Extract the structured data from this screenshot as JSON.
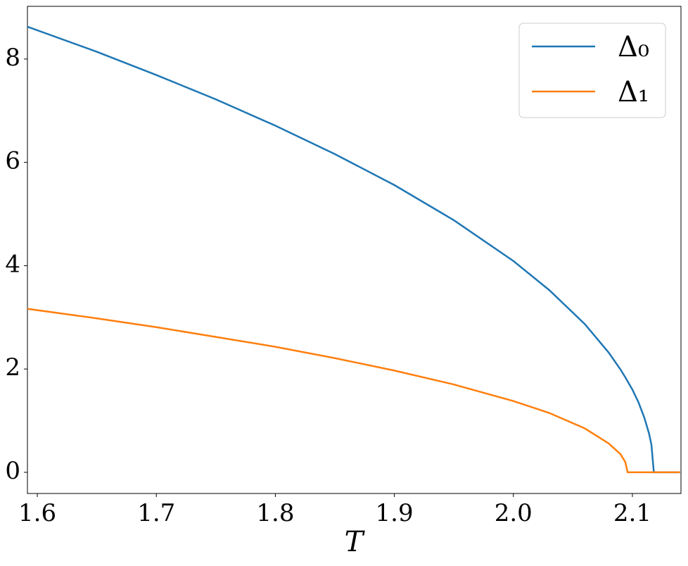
{
  "chart_data": {
    "type": "line",
    "x_label": "T",
    "x": [
      1.59,
      1.65,
      1.7,
      1.75,
      1.8,
      1.85,
      1.9,
      1.95,
      2.0,
      2.03,
      2.06,
      2.08,
      2.09,
      2.094,
      2.096,
      2.1,
      2.105,
      2.11,
      2.114,
      2.116,
      2.118,
      2.14
    ],
    "series": [
      {
        "name": "Δ₀",
        "color": "#1f77b4",
        "values": [
          8.64,
          8.14,
          7.69,
          7.22,
          6.71,
          6.16,
          5.56,
          4.88,
          4.09,
          3.53,
          2.87,
          2.32,
          1.99,
          1.84,
          1.76,
          1.6,
          1.36,
          1.06,
          0.75,
          0.53,
          0,
          0
        ]
      },
      {
        "name": "Δ₁",
        "color": "#ff7f0e",
        "values": [
          3.17,
          2.98,
          2.81,
          2.62,
          2.43,
          2.21,
          1.97,
          1.7,
          1.38,
          1.15,
          0.85,
          0.56,
          0.35,
          0.2,
          0,
          0,
          0,
          0,
          0,
          0,
          0,
          0
        ]
      }
    ],
    "xlim": [
      1.5917,
      2.1408
    ],
    "ylim": [
      -0.41,
      9.02
    ],
    "xticks": [
      1.6,
      1.7,
      1.8,
      1.9,
      {
        "value": 2.0,
        "label": "2.0"
      },
      2.1
    ],
    "yticks": [
      0,
      2,
      4,
      6,
      8
    ],
    "grid": false,
    "legend": "upper right"
  }
}
